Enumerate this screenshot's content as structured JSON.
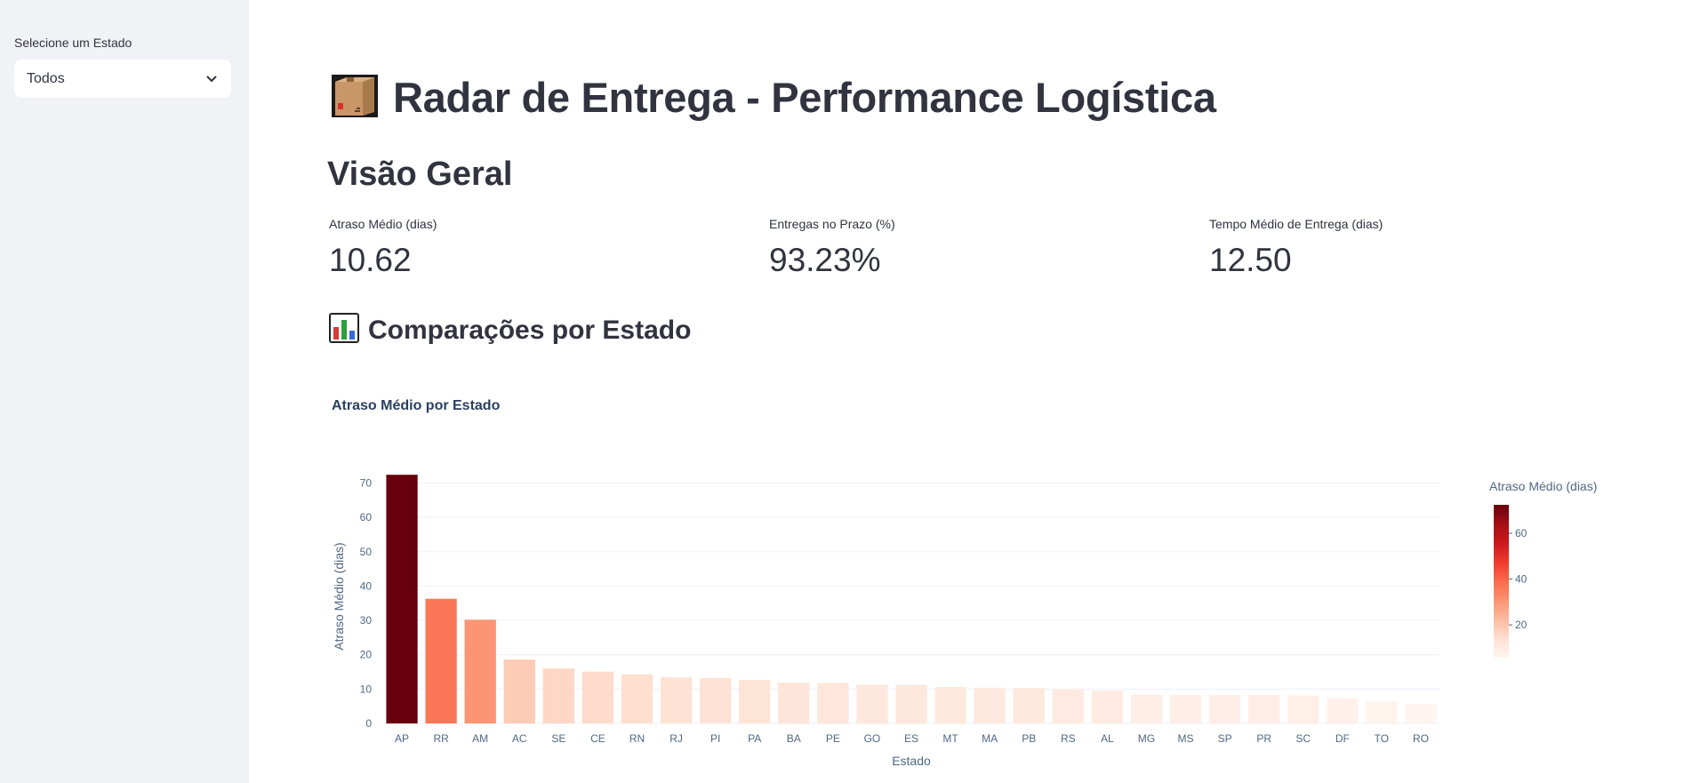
{
  "sidebar": {
    "select_label": "Selecione um Estado",
    "select_value": "Todos"
  },
  "header": {
    "title": "Radar de Entrega - Performance Logística",
    "icon": "package-icon"
  },
  "overview": {
    "title": "Visão Geral",
    "metrics": [
      {
        "label": "Atraso Médio (dias)",
        "value": "10.62"
      },
      {
        "label": "Entregas no Prazo (%)",
        "value": "93.23%"
      },
      {
        "label": "Tempo Médio de Entrega (dias)",
        "value": "12.50"
      }
    ]
  },
  "comparisons": {
    "title": "Comparações por Estado",
    "icon": "bar-chart-icon"
  },
  "chart_data": {
    "type": "bar",
    "title": "Atraso Médio por Estado",
    "xlabel": "Estado",
    "ylabel": "Atraso Médio (dias)",
    "colorbar_title": "Atraso Médio (dias)",
    "colorscale": "Reds",
    "colorbar_ticks": [
      20,
      40,
      60
    ],
    "ylim": [
      0,
      74
    ],
    "yticks": [
      0,
      10,
      20,
      30,
      40,
      50,
      60,
      70
    ],
    "grid": true,
    "categories": [
      "AP",
      "RR",
      "AM",
      "AC",
      "SE",
      "CE",
      "RN",
      "RJ",
      "PI",
      "PA",
      "BA",
      "PE",
      "GO",
      "ES",
      "MT",
      "MA",
      "PB",
      "RS",
      "AL",
      "MG",
      "MS",
      "SP",
      "PR",
      "SC",
      "DF",
      "TO",
      "RO"
    ],
    "values": [
      72.4,
      36.3,
      30.2,
      18.6,
      16.0,
      15.1,
      14.3,
      13.4,
      13.2,
      12.7,
      11.9,
      11.8,
      11.3,
      11.2,
      10.6,
      10.4,
      10.3,
      10.1,
      9.5,
      8.4,
      8.3,
      8.3,
      8.3,
      8.2,
      7.4,
      6.4,
      5.7
    ]
  }
}
